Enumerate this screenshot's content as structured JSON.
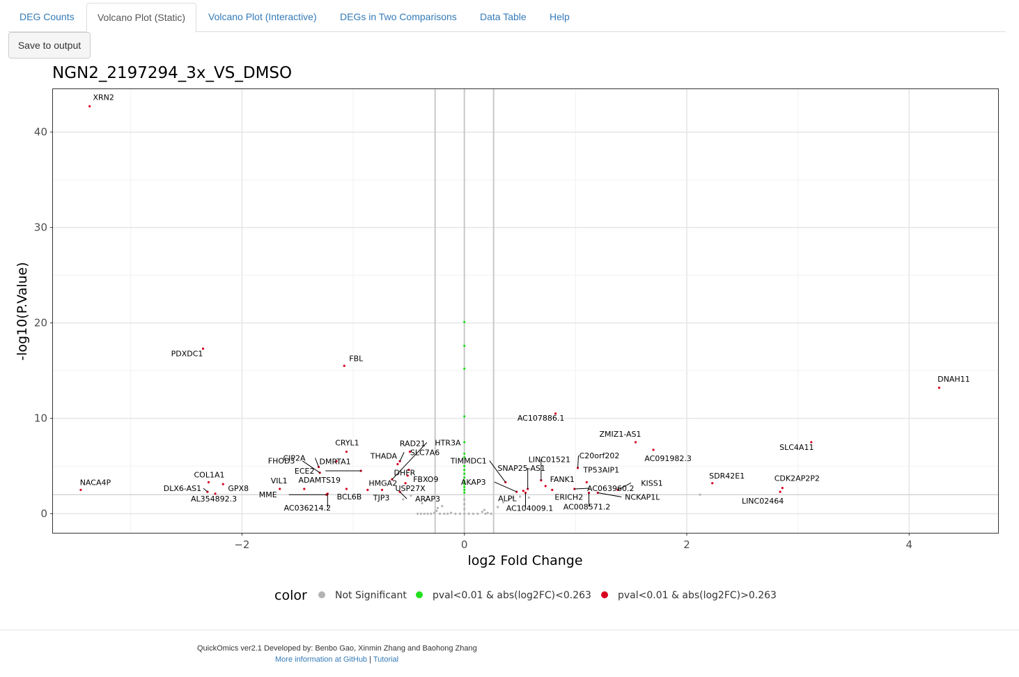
{
  "tabs": [
    {
      "label": "DEG Counts"
    },
    {
      "label": "Volcano Plot (Static)"
    },
    {
      "label": "Volcano Plot (Interactive)"
    },
    {
      "label": "DEGs in Two Comparisons"
    },
    {
      "label": "Data Table"
    },
    {
      "label": "Help"
    }
  ],
  "active_tab": "Volcano Plot (Static)",
  "save_button": "Save to output",
  "colors": {
    "not_significant": "#b3b3b3",
    "significant_small_fc": "#22e01e",
    "significant_large_fc": "#d7001f",
    "link": "#337ab7"
  },
  "chart_data": {
    "type": "scatter",
    "title": "NGN2_2197294_3x_VS_DMSO",
    "xlabel": "log2 Fold Change",
    "ylabel": "-log10(P.Value)",
    "xlim": [
      -3.7,
      4.8
    ],
    "ylim": [
      -2,
      44.5
    ],
    "x_ticks": [
      -2,
      0,
      2,
      4
    ],
    "y_ticks": [
      0,
      10,
      20,
      30,
      40
    ],
    "x_tick_labels": [
      "−2",
      "0",
      "2",
      "4"
    ],
    "y_tick_labels": [
      "0",
      "10",
      "20",
      "30",
      "40"
    ],
    "thresholds": {
      "x": [
        -0.263,
        0.263
      ],
      "y": 2
    },
    "grid": true,
    "legend": {
      "title": "color",
      "placement": "bottom",
      "entries": [
        "Not Significant",
        "pval<0.01 & abs(log2FC)<0.263",
        "pval<0.01 & abs(log2FC)>0.263"
      ]
    },
    "series": [
      {
        "name": "pval<0.01 & abs(log2FC)>0.263",
        "points": [
          {
            "label": "XRN2",
            "x": -3.37,
            "y": 42.7
          },
          {
            "label": "PDXDC1",
            "x": -2.35,
            "y": 17.3
          },
          {
            "label": "FBL",
            "x": -1.08,
            "y": 15.5
          },
          {
            "label": "DNAH11",
            "x": 4.27,
            "y": 13.2
          },
          {
            "label": "AC107886.1",
            "x": 0.82,
            "y": 10.5
          },
          {
            "label": "SLC4A11",
            "x": 3.12,
            "y": 7.5
          },
          {
            "label": "ZMIZ1-AS1",
            "x": 1.54,
            "y": 7.5
          },
          {
            "label": "AC091982.3",
            "x": 1.7,
            "y": 6.7
          },
          {
            "label": "NACA4P",
            "x": -3.45,
            "y": 2.5
          },
          {
            "label": "COL1A1",
            "x": -2.3,
            "y": 3.3
          },
          {
            "label": "DLX6-AS1",
            "x": -2.31,
            "y": 2.3
          },
          {
            "label": "AL354892.3",
            "x": -2.24,
            "y": 2.1
          },
          {
            "label": "GPX8",
            "x": -2.17,
            "y": 3.1
          },
          {
            "label": "CRYL1",
            "x": -1.06,
            "y": 6.5
          },
          {
            "label": "CIP2A",
            "x": -1.31,
            "y": 4.9
          },
          {
            "label": "FHOD3",
            "x": -1.3,
            "y": 4.3
          },
          {
            "label": "DMRTA1",
            "x": -1.15,
            "y": 5.5
          },
          {
            "label": "ECE2",
            "x": -0.93,
            "y": 4.5
          },
          {
            "label": "VIL1",
            "x": -1.66,
            "y": 2.6
          },
          {
            "label": "ADAMTS19",
            "x": -1.44,
            "y": 2.6
          },
          {
            "label": "MME",
            "x": -1.24,
            "y": 2.0
          },
          {
            "label": "AC036214.2",
            "x": -1.23,
            "y": 2.1
          },
          {
            "label": "BCL6B",
            "x": -1.06,
            "y": 2.6
          },
          {
            "label": "HMGA2",
            "x": -0.87,
            "y": 2.5
          },
          {
            "label": "TJP3",
            "x": -0.74,
            "y": 2.5
          },
          {
            "label": "THADA",
            "x": -0.6,
            "y": 5.2
          },
          {
            "label": "RAD21",
            "x": -0.49,
            "y": 6.5
          },
          {
            "label": "SLC7A6",
            "x": -0.58,
            "y": 5.5
          },
          {
            "label": "DHFR",
            "x": -0.5,
            "y": 4.6
          },
          {
            "label": "HTR3A",
            "x": -0.65,
            "y": 3.6
          },
          {
            "label": "FBXO9",
            "x": -0.51,
            "y": 4.0
          },
          {
            "label": "USP27X",
            "x": -0.53,
            "y": 3.2
          },
          {
            "label": "ARAP3",
            "x": -0.58,
            "y": 2.3
          },
          {
            "label": "TIMMDC1",
            "x": 0.37,
            "y": 3.3
          },
          {
            "label": "AKAP3",
            "x": 0.47,
            "y": 2.3
          },
          {
            "label": "ALPL",
            "x": 0.53,
            "y": 2.4
          },
          {
            "label": "SNAP25-AS1",
            "x": 0.57,
            "y": 2.6
          },
          {
            "label": "AC104009.1",
            "x": 0.55,
            "y": 2.2
          },
          {
            "label": "LINC01521",
            "x": 0.69,
            "y": 3.5
          },
          {
            "label": "FANK1",
            "x": 0.73,
            "y": 2.9
          },
          {
            "label": "ERICH2",
            "x": 0.79,
            "y": 2.5
          },
          {
            "label": "C20orf202",
            "x": 1.02,
            "y": 4.8
          },
          {
            "label": "TP53AIP1",
            "x": 1.1,
            "y": 3.3
          },
          {
            "label": "AC063960.2",
            "x": 0.99,
            "y": 2.6
          },
          {
            "label": "KISS1",
            "x": 1.38,
            "y": 2.5
          },
          {
            "label": "NCKAP1L",
            "x": 1.2,
            "y": 2.2
          },
          {
            "label": "AC008571.2",
            "x": 1.12,
            "y": 2.2
          },
          {
            "label": "SDR42E1",
            "x": 2.23,
            "y": 3.2
          },
          {
            "label": "CDK2AP2P2",
            "x": 2.86,
            "y": 2.7
          },
          {
            "label": "LINC02464",
            "x": 2.84,
            "y": 2.3
          }
        ]
      },
      {
        "name": "pval<0.01 & abs(log2FC)<0.263",
        "points": [
          {
            "x": 0.0,
            "y": 20.1
          },
          {
            "x": 0.0,
            "y": 17.6
          },
          {
            "x": 0.0,
            "y": 15.2
          },
          {
            "x": 0.0,
            "y": 10.2
          },
          {
            "x": 0.0,
            "y": 7.5
          },
          {
            "x": 0.0,
            "y": 6.3
          },
          {
            "x": 0.0,
            "y": 5.9
          },
          {
            "x": 0.0,
            "y": 5.0
          },
          {
            "x": 0.0,
            "y": 4.6
          },
          {
            "x": 0.0,
            "y": 4.2
          },
          {
            "x": 0.0,
            "y": 3.8
          },
          {
            "x": 0.0,
            "y": 3.4
          },
          {
            "x": 0.0,
            "y": 3.1
          },
          {
            "x": 0.0,
            "y": 2.8
          },
          {
            "x": 0.0,
            "y": 2.5
          },
          {
            "x": 0.0,
            "y": 2.2
          }
        ]
      },
      {
        "name": "Not Significant",
        "points": [
          {
            "x": -0.42,
            "y": 0.0
          },
          {
            "x": -0.39,
            "y": 0.0
          },
          {
            "x": -0.36,
            "y": 0.0
          },
          {
            "x": -0.33,
            "y": 0.0
          },
          {
            "x": -0.3,
            "y": 0.0
          },
          {
            "x": -0.27,
            "y": 0.1
          },
          {
            "x": -0.25,
            "y": 0.3
          },
          {
            "x": -0.24,
            "y": 0.6
          },
          {
            "x": -0.22,
            "y": 0.0
          },
          {
            "x": -0.2,
            "y": 0.8
          },
          {
            "x": -0.18,
            "y": 0.0
          },
          {
            "x": -0.15,
            "y": 0.0
          },
          {
            "x": -0.12,
            "y": 0.1
          },
          {
            "x": -0.08,
            "y": 0.0
          },
          {
            "x": -0.04,
            "y": 0.0
          },
          {
            "x": 0.0,
            "y": 0.0
          },
          {
            "x": 0.0,
            "y": 0.5
          },
          {
            "x": 0.0,
            "y": 1.0
          },
          {
            "x": 0.0,
            "y": 1.5
          },
          {
            "x": 0.04,
            "y": 0.0
          },
          {
            "x": 0.08,
            "y": 0.0
          },
          {
            "x": 0.12,
            "y": 0.0
          },
          {
            "x": 0.16,
            "y": 0.2
          },
          {
            "x": 0.18,
            "y": 0.4
          },
          {
            "x": 0.19,
            "y": 0.0
          },
          {
            "x": 0.21,
            "y": 0.1
          },
          {
            "x": 0.24,
            "y": 0.0
          },
          {
            "x": -0.38,
            "y": 1.1
          },
          {
            "x": -0.35,
            "y": 1.4
          },
          {
            "x": -0.33,
            "y": 1.8
          },
          {
            "x": 0.3,
            "y": 0.7
          },
          {
            "x": 0.35,
            "y": 1.2
          },
          {
            "x": 0.4,
            "y": 1.5
          },
          {
            "x": 0.44,
            "y": 1.7
          },
          {
            "x": 0.5,
            "y": 1.8
          },
          {
            "x": 0.58,
            "y": 1.7
          },
          {
            "x": 2.12,
            "y": 2.0
          },
          {
            "x": -0.55,
            "y": 1.5
          },
          {
            "x": -0.48,
            "y": 1.9
          }
        ]
      }
    ]
  },
  "footer": {
    "credits": "QuickOmics ver2.1 Developed by: Benbo Gao, Xinmin Zhang and Baohong Zhang",
    "link_github": "More information at GitHub",
    "separator": "|",
    "link_tutorial": "Tutorial"
  }
}
